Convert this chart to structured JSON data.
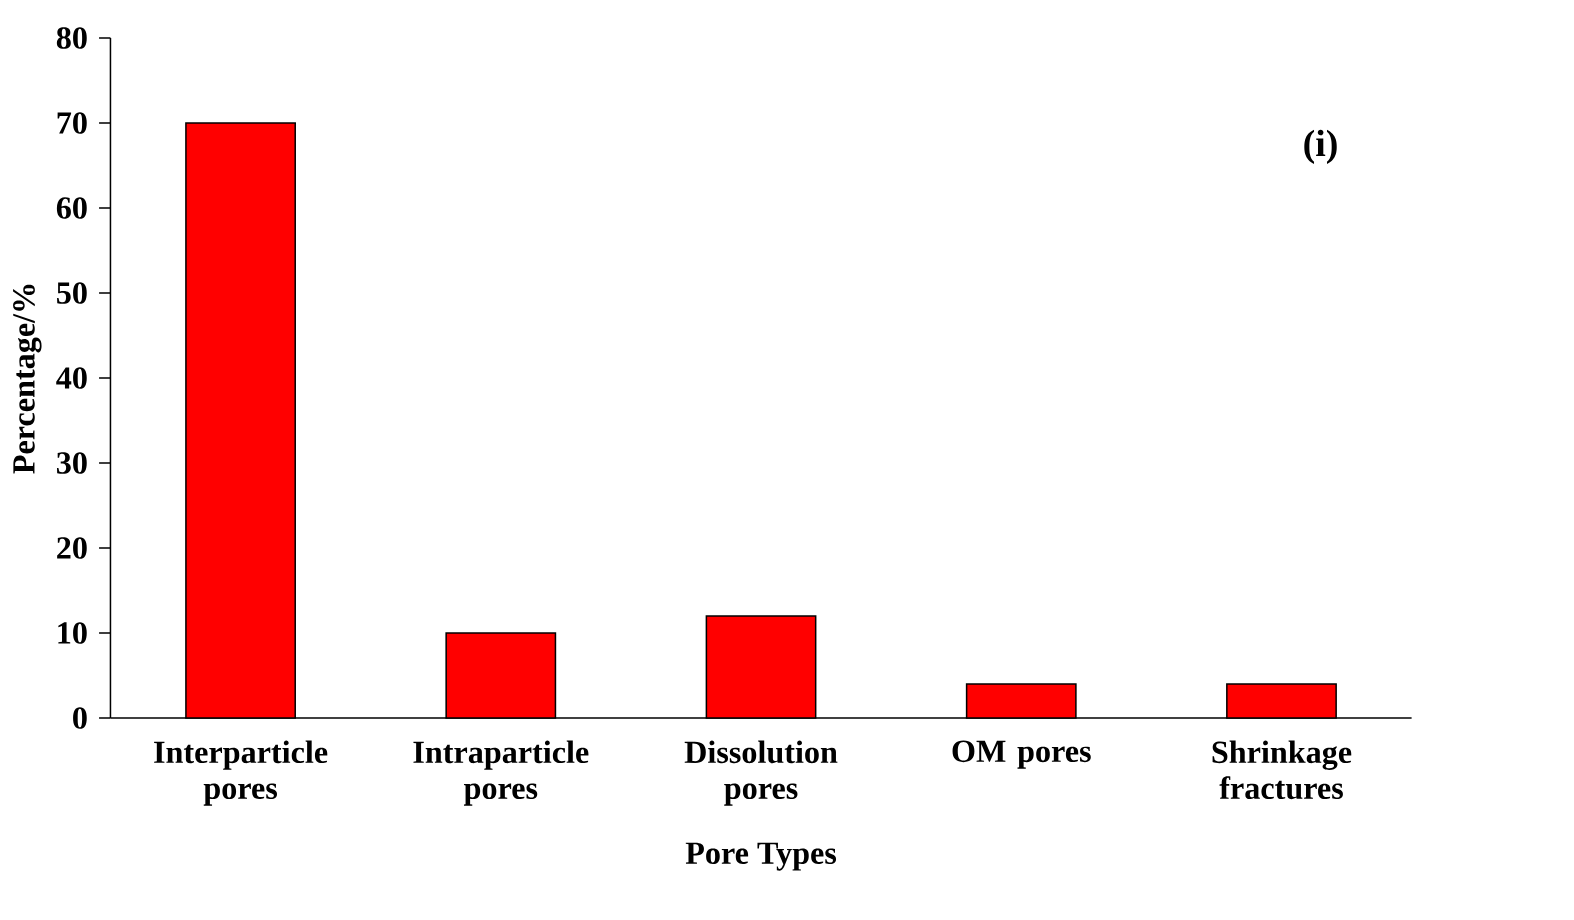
{
  "chart_data": {
    "type": "bar",
    "xlabel": "Pore Types",
    "ylabel": "Percentage/%",
    "categories": [
      "Interparticle pores",
      "Intraparticle pores",
      "Dissolution pores",
      "OM pores",
      "Shrinkage fractures"
    ],
    "values": [
      70,
      10,
      12,
      4,
      4
    ],
    "color": "#ff0000",
    "ylim": [
      0,
      80
    ],
    "yticks": [
      0,
      10,
      20,
      30,
      40,
      50,
      60,
      70,
      80
    ],
    "annotations": [
      "(i)"
    ]
  }
}
